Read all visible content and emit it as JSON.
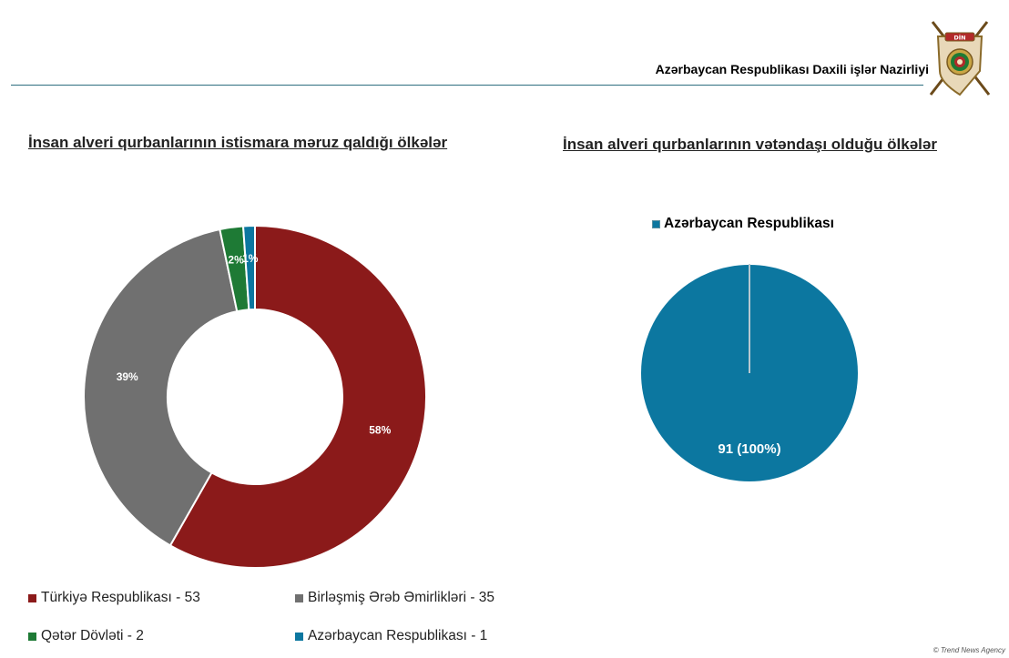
{
  "header": {
    "title": "Azərbaycan Respublikası Daxili işlər Nazirliyi"
  },
  "emblem": {
    "text": "DİN"
  },
  "credit": "© Trend News Agency",
  "colors": {
    "turkiye": "#8b1a1a",
    "bae": "#707070",
    "qatar": "#1e7a35",
    "azerbaijan": "#0c77a0",
    "rule": "#2e6f7f"
  },
  "chart_data": [
    {
      "type": "pie",
      "variant": "donut",
      "title": "İnsan alveri qurbanlarının istismara məruz qaldığı ölkələr",
      "legend_position": "bottom",
      "slices": [
        {
          "name": "Türkiyə Respublikası - 53",
          "value": 53,
          "label": "58%",
          "color": "#8b1a1a"
        },
        {
          "name": "Birləşmiş Ərəb Əmirlikləri - 35",
          "value": 35,
          "label": "39%",
          "color": "#707070"
        },
        {
          "name": "Qətər Dövləti - 2",
          "value": 2,
          "label": "2%",
          "color": "#1e7a35"
        },
        {
          "name": "Azərbaycan Respublikası - 1",
          "value": 1,
          "label": "1%",
          "color": "#0c77a0"
        }
      ]
    },
    {
      "type": "pie",
      "title": "İnsan alveri qurbanlarının vətəndaşı olduğu ölkələr",
      "legend_position": "top",
      "slices": [
        {
          "name": "Azərbaycan Respublikası",
          "value": 91,
          "label": "91 (100%)",
          "color": "#0c77a0"
        }
      ]
    }
  ]
}
